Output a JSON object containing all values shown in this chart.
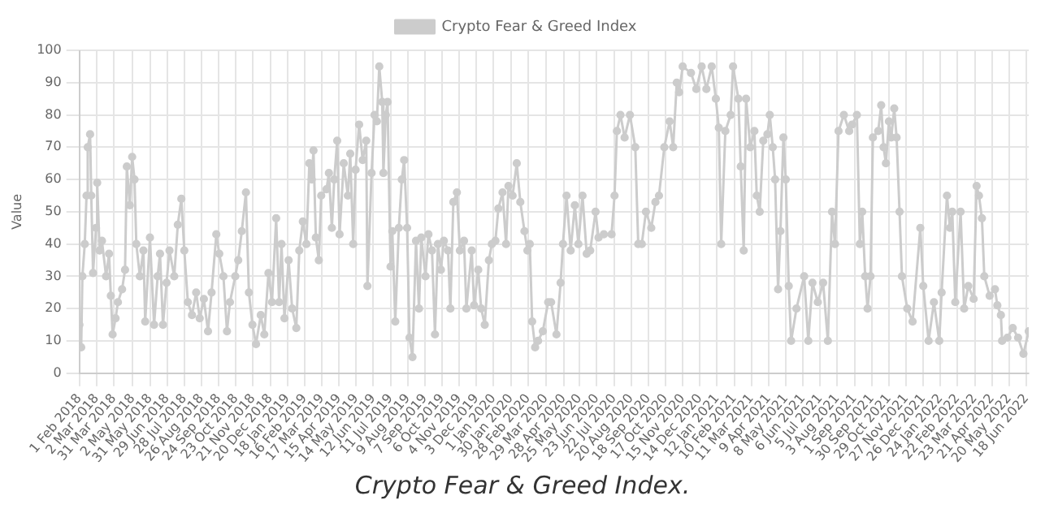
{
  "chart_data": {
    "type": "line",
    "ylabel": "Value",
    "legend": "top",
    "grid": true,
    "marker": "circle",
    "line_style": "solid",
    "annotations": [
      "Crypto Fear & Greed Index."
    ],
    "ylim": [
      0,
      100
    ],
    "yticks": [
      0,
      10,
      20,
      30,
      40,
      50,
      60,
      70,
      80,
      90,
      100
    ],
    "xlim": [
      "2018-02-01",
      "2022-06-22"
    ],
    "xticks": [
      {
        "value": "2018-02-01",
        "label": "1 Feb 2018"
      },
      {
        "value": "2018-03-02",
        "label": "2 Mar 2018"
      },
      {
        "value": "2018-03-31",
        "label": "31 Mar 2018"
      },
      {
        "value": "2018-05-02",
        "label": "2 May 2018"
      },
      {
        "value": "2018-05-31",
        "label": "31 May 2018"
      },
      {
        "value": "2018-06-29",
        "label": "29 Jun 2018"
      },
      {
        "value": "2018-07-28",
        "label": "28 Jul 2018"
      },
      {
        "value": "2018-08-26",
        "label": "26 Aug 2018"
      },
      {
        "value": "2018-09-24",
        "label": "24 Sep 2018"
      },
      {
        "value": "2018-10-23",
        "label": "23 Oct 2018"
      },
      {
        "value": "2018-11-21",
        "label": "21 Nov 2018"
      },
      {
        "value": "2018-12-20",
        "label": "20 Dec 2018"
      },
      {
        "value": "2019-01-18",
        "label": "18 Jan 2019"
      },
      {
        "value": "2019-02-16",
        "label": "16 Feb 2019"
      },
      {
        "value": "2019-03-17",
        "label": "17 Mar 2019"
      },
      {
        "value": "2019-04-15",
        "label": "15 Apr 2019"
      },
      {
        "value": "2019-05-14",
        "label": "14 May 2019"
      },
      {
        "value": "2019-06-12",
        "label": "12 Jun 2019"
      },
      {
        "value": "2019-07-11",
        "label": "11 Jul 2019"
      },
      {
        "value": "2019-08-09",
        "label": "9 Aug 2019"
      },
      {
        "value": "2019-09-07",
        "label": "7 Sep 2019"
      },
      {
        "value": "2019-10-06",
        "label": "6 Oct 2019"
      },
      {
        "value": "2019-11-04",
        "label": "4 Nov 2019"
      },
      {
        "value": "2019-12-03",
        "label": "3 Dec 2019"
      },
      {
        "value": "2020-01-01",
        "label": "1 Jan 2020"
      },
      {
        "value": "2020-01-30",
        "label": "30 Jan 2020"
      },
      {
        "value": "2020-02-28",
        "label": "28 Feb 2020"
      },
      {
        "value": "2020-03-29",
        "label": "29 Mar 2020"
      },
      {
        "value": "2020-04-28",
        "label": "28 Apr 2020"
      },
      {
        "value": "2020-05-25",
        "label": "25 May 2020"
      },
      {
        "value": "2020-06-23",
        "label": "23 Jun 2020"
      },
      {
        "value": "2020-07-22",
        "label": "22 Jul 2020"
      },
      {
        "value": "2020-08-20",
        "label": "20 Aug 2020"
      },
      {
        "value": "2020-09-18",
        "label": "18 Sep 2020"
      },
      {
        "value": "2020-10-17",
        "label": "17 Oct 2020"
      },
      {
        "value": "2020-11-15",
        "label": "15 Nov 2020"
      },
      {
        "value": "2020-12-14",
        "label": "14 Dec 2020"
      },
      {
        "value": "2021-01-12",
        "label": "12 Jan 2021"
      },
      {
        "value": "2021-02-10",
        "label": "10 Feb 2021"
      },
      {
        "value": "2021-03-11",
        "label": "11 Mar 2021"
      },
      {
        "value": "2021-04-09",
        "label": "9 Apr 2021"
      },
      {
        "value": "2021-05-08",
        "label": "8 May 2021"
      },
      {
        "value": "2021-06-06",
        "label": "6 Jun 2021"
      },
      {
        "value": "2021-07-05",
        "label": "5 Jul 2021"
      },
      {
        "value": "2021-08-03",
        "label": "3 Aug 2021"
      },
      {
        "value": "2021-09-01",
        "label": "1 Sep 2021"
      },
      {
        "value": "2021-09-30",
        "label": "30 Sep 2021"
      },
      {
        "value": "2021-10-29",
        "label": "29 Oct 2021"
      },
      {
        "value": "2021-11-27",
        "label": "27 Nov 2021"
      },
      {
        "value": "2021-12-26",
        "label": "26 Dec 2021"
      },
      {
        "value": "2022-01-24",
        "label": "24 Jan 2022"
      },
      {
        "value": "2022-02-22",
        "label": "22 Feb 2022"
      },
      {
        "value": "2022-03-23",
        "label": "23 Mar 2022"
      },
      {
        "value": "2022-04-21",
        "label": "21 Apr 2022"
      },
      {
        "value": "2022-05-20",
        "label": "20 May 2022"
      },
      {
        "value": "2022-06-18",
        "label": "18 Jun 2022"
      }
    ],
    "series": [
      {
        "name": "Crypto Fear & Greed Index",
        "color": "#cccccc",
        "x": [
          "2018-02-01",
          "2018-02-04",
          "2018-02-06",
          "2018-02-10",
          "2018-02-13",
          "2018-02-15",
          "2018-02-19",
          "2018-02-21",
          "2018-02-24",
          "2018-03-01",
          "2018-03-03",
          "2018-03-07",
          "2018-03-11",
          "2018-03-18",
          "2018-03-23",
          "2018-03-26",
          "2018-03-29",
          "2018-04-03",
          "2018-04-07",
          "2018-04-14",
          "2018-04-19",
          "2018-04-22",
          "2018-04-27",
          "2018-05-01",
          "2018-05-05",
          "2018-05-08",
          "2018-05-14",
          "2018-05-20",
          "2018-05-23",
          "2018-05-31",
          "2018-06-07",
          "2018-06-13",
          "2018-06-17",
          "2018-06-22",
          "2018-06-28",
          "2018-07-03",
          "2018-07-11",
          "2018-07-17",
          "2018-07-23",
          "2018-07-28",
          "2018-08-03",
          "2018-08-10",
          "2018-08-17",
          "2018-08-23",
          "2018-08-30",
          "2018-09-06",
          "2018-09-12",
          "2018-09-20",
          "2018-09-25",
          "2018-10-02",
          "2018-10-08",
          "2018-10-13",
          "2018-10-22",
          "2018-10-27",
          "2018-11-02",
          "2018-11-09",
          "2018-11-14",
          "2018-11-20",
          "2018-11-26",
          "2018-12-04",
          "2018-12-10",
          "2018-12-17",
          "2018-12-23",
          "2018-12-30",
          "2019-01-04",
          "2019-01-08",
          "2019-01-13",
          "2019-01-20",
          "2019-01-26",
          "2019-02-02",
          "2019-02-07",
          "2019-02-13",
          "2019-02-19",
          "2019-02-24",
          "2019-02-28",
          "2019-03-03",
          "2019-03-07",
          "2019-03-12",
          "2019-03-16",
          "2019-03-25",
          "2019-03-29",
          "2019-04-03",
          "2019-04-07",
          "2019-04-12",
          "2019-04-16",
          "2019-04-23",
          "2019-04-30",
          "2019-05-04",
          "2019-05-09",
          "2019-05-13",
          "2019-05-19",
          "2019-05-25",
          "2019-05-31",
          "2019-06-02",
          "2019-06-09",
          "2019-06-14",
          "2019-06-18",
          "2019-06-22",
          "2019-06-27",
          "2019-06-29",
          "2019-07-03",
          "2019-07-06",
          "2019-07-11",
          "2019-07-14",
          "2019-07-19",
          "2019-07-25",
          "2019-07-30",
          "2019-08-03",
          "2019-08-08",
          "2019-08-12",
          "2019-08-17",
          "2019-08-23",
          "2019-08-28",
          "2019-09-01",
          "2019-09-08",
          "2019-09-13",
          "2019-09-19",
          "2019-09-24",
          "2019-09-29",
          "2019-10-04",
          "2019-10-09",
          "2019-10-16",
          "2019-10-20",
          "2019-10-25",
          "2019-10-31",
          "2019-11-05",
          "2019-11-12",
          "2019-11-16",
          "2019-11-25",
          "2019-11-29",
          "2019-12-06",
          "2019-12-11",
          "2019-12-17",
          "2019-12-24",
          "2019-12-29",
          "2020-01-04",
          "2020-01-09",
          "2020-01-16",
          "2020-01-22",
          "2020-01-26",
          "2020-02-02",
          "2020-02-09",
          "2020-02-15",
          "2020-02-22",
          "2020-02-27",
          "2020-03-02",
          "2020-03-06",
          "2020-03-11",
          "2020-03-16",
          "2020-03-24",
          "2020-04-02",
          "2020-04-07",
          "2020-04-16",
          "2020-04-23",
          "2020-04-27",
          "2020-05-03",
          "2020-05-10",
          "2020-05-17",
          "2020-05-23",
          "2020-05-30",
          "2020-06-06",
          "2020-06-12",
          "2020-06-21",
          "2020-06-26",
          "2020-07-05",
          "2020-07-18",
          "2020-07-23",
          "2020-07-27",
          "2020-08-02",
          "2020-08-09",
          "2020-08-18",
          "2020-08-27",
          "2020-09-01",
          "2020-09-07",
          "2020-09-14",
          "2020-09-23",
          "2020-09-30",
          "2020-10-06",
          "2020-10-15",
          "2020-10-24",
          "2020-10-30",
          "2020-11-05",
          "2020-11-09",
          "2020-11-15",
          "2020-11-29",
          "2020-12-08",
          "2020-12-17",
          "2020-12-25",
          "2021-01-03",
          "2021-01-10",
          "2021-01-15",
          "2021-01-19",
          "2021-01-26",
          "2021-02-04",
          "2021-02-08",
          "2021-02-17",
          "2021-02-21",
          "2021-02-26",
          "2021-03-02",
          "2021-03-09",
          "2021-03-16",
          "2021-03-20",
          "2021-03-25",
          "2021-03-31",
          "2021-04-07",
          "2021-04-11",
          "2021-04-16",
          "2021-04-20",
          "2021-04-25",
          "2021-04-29",
          "2021-05-04",
          "2021-05-08",
          "2021-05-13",
          "2021-05-17",
          "2021-05-26",
          "2021-06-08",
          "2021-06-15",
          "2021-06-22",
          "2021-07-01",
          "2021-07-10",
          "2021-07-18",
          "2021-07-25",
          "2021-07-30",
          "2021-08-05",
          "2021-08-14",
          "2021-08-23",
          "2021-08-28",
          "2021-09-05",
          "2021-09-10",
          "2021-09-14",
          "2021-09-19",
          "2021-09-23",
          "2021-09-28",
          "2021-10-02",
          "2021-10-11",
          "2021-10-16",
          "2021-10-20",
          "2021-10-24",
          "2021-10-29",
          "2021-11-02",
          "2021-11-07",
          "2021-11-11",
          "2021-11-16",
          "2021-11-20",
          "2021-11-29",
          "2021-12-08",
          "2021-12-21",
          "2021-12-26",
          "2022-01-04",
          "2022-01-13",
          "2022-01-22",
          "2022-01-26",
          "2022-02-04",
          "2022-02-09",
          "2022-02-13",
          "2022-02-18",
          "2022-02-27",
          "2022-03-05",
          "2022-03-12",
          "2022-03-21",
          "2022-03-26",
          "2022-03-30",
          "2022-04-04",
          "2022-04-08",
          "2022-04-17",
          "2022-04-26",
          "2022-04-30",
          "2022-05-06",
          "2022-05-08",
          "2022-05-17",
          "2022-05-26",
          "2022-06-04",
          "2022-06-13",
          "2022-06-22"
        ],
        "values": [
          15,
          8,
          30,
          40,
          55,
          70,
          74,
          55,
          31,
          45,
          59,
          38,
          41,
          30,
          37,
          24,
          12,
          17,
          22,
          26,
          32,
          64,
          52,
          67,
          60,
          40,
          30,
          38,
          16,
          42,
          15,
          30,
          37,
          15,
          28,
          38,
          30,
          46,
          54,
          38,
          22,
          18,
          25,
          17,
          23,
          13,
          25,
          43,
          37,
          30,
          13,
          22,
          30,
          35,
          44,
          56,
          25,
          15,
          9,
          18,
          12,
          31,
          22,
          48,
          22,
          40,
          17,
          35,
          20,
          14,
          38,
          47,
          40,
          65,
          60,
          69,
          42,
          35,
          55,
          57,
          62,
          45,
          60,
          72,
          43,
          65,
          55,
          68,
          40,
          63,
          77,
          66,
          72,
          27,
          62,
          80,
          78,
          95,
          84,
          62,
          80,
          84,
          33,
          44,
          16,
          45,
          60,
          66,
          45,
          11,
          5,
          41,
          20,
          42,
          30,
          43,
          38,
          12,
          40,
          32,
          41,
          38,
          20,
          53,
          56,
          38,
          41,
          20,
          38,
          21,
          32,
          20,
          15,
          35,
          40,
          41,
          51,
          56,
          40,
          58,
          55,
          65,
          53,
          44,
          38,
          40,
          16,
          8,
          10,
          13,
          22,
          22,
          12,
          28,
          40,
          55,
          38,
          52,
          40,
          55,
          37,
          38,
          50,
          42,
          43,
          43,
          55,
          75,
          80,
          73,
          80,
          70,
          40,
          40,
          50,
          45,
          53,
          55,
          70,
          78,
          70,
          90,
          87,
          95,
          93,
          88,
          95,
          88,
          95,
          85,
          76,
          40,
          75,
          80,
          95,
          85,
          64,
          38,
          85,
          70,
          75,
          55,
          50,
          72,
          74,
          80,
          70,
          60,
          26,
          44,
          73,
          60,
          27,
          10,
          20,
          30,
          10,
          28,
          22,
          28,
          10,
          50,
          40,
          75,
          80,
          75,
          77,
          80,
          40,
          50,
          30,
          20,
          30,
          73,
          75,
          83,
          70,
          65,
          78,
          73,
          82,
          73,
          50,
          30,
          20,
          16,
          45,
          27,
          10,
          22,
          10,
          25,
          55,
          45,
          50,
          22,
          50,
          20,
          27,
          23,
          58,
          55,
          48,
          30,
          24,
          26,
          21,
          18,
          10,
          11,
          14,
          11,
          6,
          13
        ]
      }
    ]
  }
}
